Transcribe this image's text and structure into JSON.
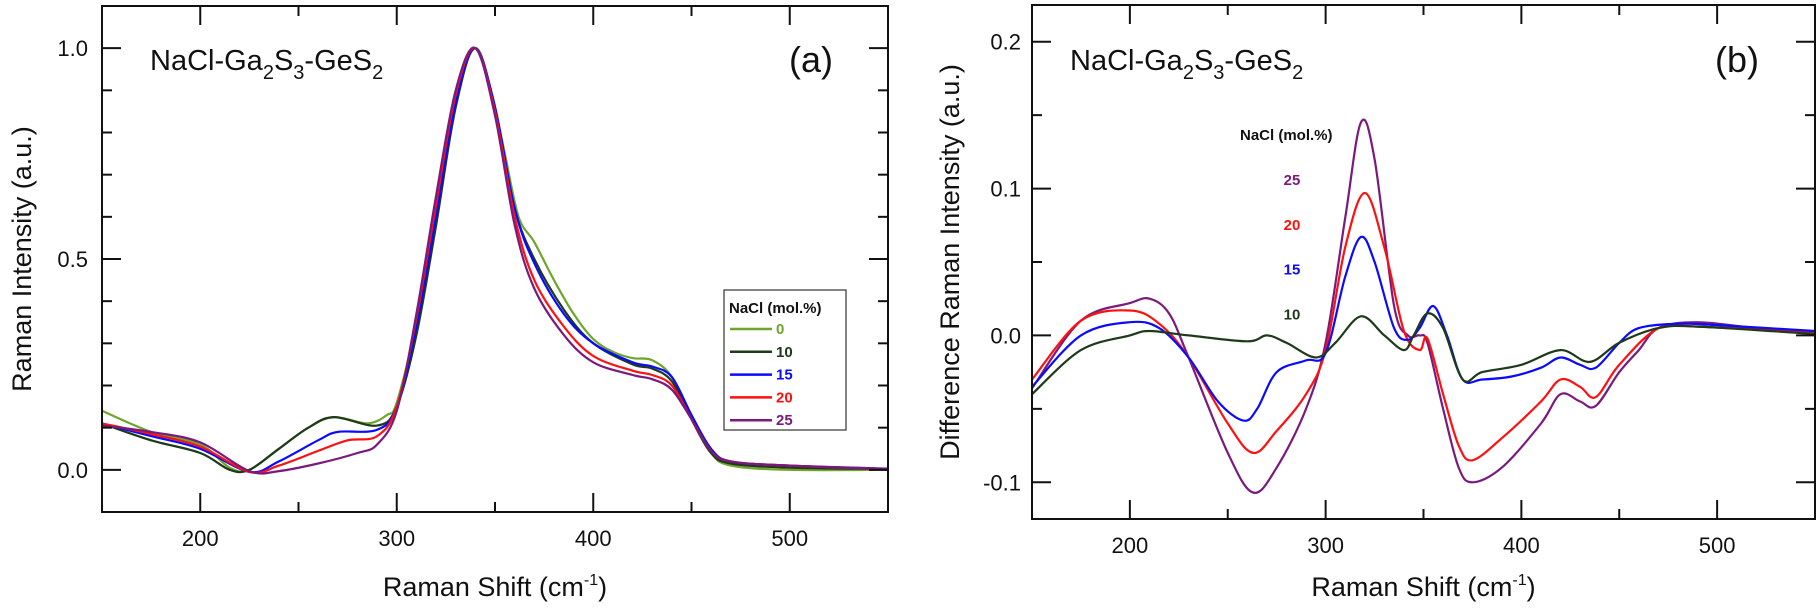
{
  "chart_data": [
    {
      "type": "line",
      "panel_label": "(a)",
      "annotation": {
        "base": "NaCl-Ga",
        "s1": "2",
        "m1": "S",
        "s2": "3",
        "m2": "-GeS",
        "s3": "2"
      },
      "xlabel": "Raman Shift (cm",
      "xlabel_sup": "-1",
      "xlabel_end": ")",
      "ylabel": "Raman Intensity (a.u.)",
      "xlim": [
        150,
        550
      ],
      "ylim": [
        -0.1,
        1.1
      ],
      "xticks": [
        200,
        300,
        400,
        500
      ],
      "xtick_labels": [
        "200",
        "300",
        "400",
        "500"
      ],
      "yticks": [
        0.0,
        0.5,
        1.0
      ],
      "ytick_labels": [
        "0.0",
        "0.5",
        "1.0"
      ],
      "grid": false,
      "legend": {
        "title": "NaCl (mol.%)",
        "placement": "right",
        "boxed": true
      },
      "series": [
        {
          "name": "0",
          "color": "#6ea52c",
          "points": [
            [
              150,
              0.14
            ],
            [
              175,
              0.09
            ],
            [
              200,
              0.06
            ],
            [
              215,
              0.005
            ],
            [
              225,
              0.0
            ],
            [
              240,
              0.05
            ],
            [
              255,
              0.1
            ],
            [
              268,
              0.125
            ],
            [
              285,
              0.11
            ],
            [
              295,
              0.13
            ],
            [
              300,
              0.16
            ],
            [
              310,
              0.35
            ],
            [
              320,
              0.62
            ],
            [
              330,
              0.88
            ],
            [
              340,
              1.0
            ],
            [
              348,
              0.9
            ],
            [
              355,
              0.75
            ],
            [
              362,
              0.6
            ],
            [
              370,
              0.54
            ],
            [
              380,
              0.45
            ],
            [
              390,
              0.37
            ],
            [
              400,
              0.31
            ],
            [
              410,
              0.28
            ],
            [
              420,
              0.265
            ],
            [
              430,
              0.26
            ],
            [
              440,
              0.22
            ],
            [
              450,
              0.12
            ],
            [
              460,
              0.04
            ],
            [
              470,
              0.01
            ],
            [
              500,
              0.0
            ],
            [
              550,
              0.0
            ]
          ]
        },
        {
          "name": "10",
          "color": "#1e3a1a",
          "points": [
            [
              150,
              0.11
            ],
            [
              175,
              0.07
            ],
            [
              200,
              0.04
            ],
            [
              215,
              0.0
            ],
            [
              225,
              0.0
            ],
            [
              240,
              0.05
            ],
            [
              255,
              0.1
            ],
            [
              268,
              0.125
            ],
            [
              290,
              0.105
            ],
            [
              300,
              0.15
            ],
            [
              310,
              0.32
            ],
            [
              320,
              0.58
            ],
            [
              330,
              0.86
            ],
            [
              340,
              1.0
            ],
            [
              350,
              0.85
            ],
            [
              360,
              0.62
            ],
            [
              370,
              0.5
            ],
            [
              385,
              0.38
            ],
            [
              400,
              0.3
            ],
            [
              420,
              0.25
            ],
            [
              430,
              0.24
            ],
            [
              440,
              0.21
            ],
            [
              450,
              0.12
            ],
            [
              460,
              0.04
            ],
            [
              470,
              0.015
            ],
            [
              500,
              0.005
            ],
            [
              550,
              0.002
            ]
          ]
        },
        {
          "name": "15",
          "color": "#0a0aff",
          "points": [
            [
              150,
              0.11
            ],
            [
              175,
              0.08
            ],
            [
              200,
              0.05
            ],
            [
              225,
              -0.005
            ],
            [
              240,
              0.02
            ],
            [
              260,
              0.07
            ],
            [
              270,
              0.09
            ],
            [
              290,
              0.095
            ],
            [
              300,
              0.15
            ],
            [
              310,
              0.34
            ],
            [
              320,
              0.6
            ],
            [
              330,
              0.87
            ],
            [
              340,
              1.0
            ],
            [
              350,
              0.86
            ],
            [
              360,
              0.62
            ],
            [
              370,
              0.49
            ],
            [
              385,
              0.37
            ],
            [
              400,
              0.3
            ],
            [
              420,
              0.255
            ],
            [
              430,
              0.245
            ],
            [
              440,
              0.22
            ],
            [
              450,
              0.13
            ],
            [
              460,
              0.05
            ],
            [
              470,
              0.02
            ],
            [
              500,
              0.01
            ],
            [
              550,
              0.003
            ]
          ]
        },
        {
          "name": "20",
          "color": "#ff1010",
          "points": [
            [
              150,
              0.11
            ],
            [
              175,
              0.085
            ],
            [
              200,
              0.055
            ],
            [
              225,
              -0.005
            ],
            [
              240,
              0.01
            ],
            [
              260,
              0.045
            ],
            [
              275,
              0.07
            ],
            [
              290,
              0.08
            ],
            [
              300,
              0.15
            ],
            [
              310,
              0.36
            ],
            [
              320,
              0.63
            ],
            [
              330,
              0.89
            ],
            [
              340,
              1.0
            ],
            [
              350,
              0.85
            ],
            [
              360,
              0.6
            ],
            [
              370,
              0.45
            ],
            [
              385,
              0.34
            ],
            [
              400,
              0.27
            ],
            [
              420,
              0.235
            ],
            [
              430,
              0.225
            ],
            [
              440,
              0.2
            ],
            [
              450,
              0.12
            ],
            [
              460,
              0.045
            ],
            [
              470,
              0.02
            ],
            [
              500,
              0.01
            ],
            [
              550,
              0.002
            ]
          ]
        },
        {
          "name": "25",
          "color": "#7a1a7e",
          "points": [
            [
              150,
              0.105
            ],
            [
              175,
              0.09
            ],
            [
              200,
              0.065
            ],
            [
              225,
              -0.003
            ],
            [
              240,
              -0.003
            ],
            [
              260,
              0.015
            ],
            [
              280,
              0.04
            ],
            [
              290,
              0.06
            ],
            [
              300,
              0.14
            ],
            [
              310,
              0.37
            ],
            [
              320,
              0.65
            ],
            [
              330,
              0.9
            ],
            [
              340,
              1.0
            ],
            [
              350,
              0.84
            ],
            [
              360,
              0.58
            ],
            [
              370,
              0.43
            ],
            [
              385,
              0.32
            ],
            [
              400,
              0.255
            ],
            [
              420,
              0.225
            ],
            [
              430,
              0.215
            ],
            [
              440,
              0.19
            ],
            [
              450,
              0.12
            ],
            [
              460,
              0.045
            ],
            [
              470,
              0.02
            ],
            [
              500,
              0.01
            ],
            [
              550,
              0.002
            ]
          ]
        }
      ]
    },
    {
      "type": "line",
      "panel_label": "(b)",
      "annotation": {
        "base": "NaCl-Ga",
        "s1": "2",
        "m1": "S",
        "s2": "3",
        "m2": "-GeS",
        "s3": "2"
      },
      "xlabel": "Raman Shift (cm",
      "xlabel_sup": "-1",
      "xlabel_end": ")",
      "ylabel": "Difference Raman Intensity (a.u.)",
      "xlim": [
        150,
        550
      ],
      "ylim": [
        -0.125,
        0.225
      ],
      "xticks": [
        200,
        300,
        400,
        500
      ],
      "xtick_labels": [
        "200",
        "300",
        "400",
        "500"
      ],
      "yticks": [
        -0.1,
        0.0,
        0.1,
        0.2
      ],
      "ytick_labels": [
        "-0.1",
        "0.0",
        "0.1",
        "0.2"
      ],
      "grid": false,
      "legend": {
        "title": "NaCl (mol.%)",
        "placement": "top-center",
        "boxed": false
      },
      "series": [
        {
          "name": "25",
          "color": "#7a1a7e",
          "points": [
            [
              150,
              -0.036
            ],
            [
              175,
              0.01
            ],
            [
              200,
              0.022
            ],
            [
              210,
              0.025
            ],
            [
              220,
              0.015
            ],
            [
              230,
              -0.015
            ],
            [
              250,
              -0.08
            ],
            [
              263,
              -0.107
            ],
            [
              275,
              -0.09
            ],
            [
              290,
              -0.05
            ],
            [
              300,
              -0.005
            ],
            [
              310,
              0.08
            ],
            [
              318,
              0.145
            ],
            [
              325,
              0.12
            ],
            [
              335,
              0.02
            ],
            [
              342,
              0.0
            ],
            [
              348,
              0.0
            ],
            [
              352,
              -0.005
            ],
            [
              360,
              -0.05
            ],
            [
              368,
              -0.09
            ],
            [
              375,
              -0.1
            ],
            [
              390,
              -0.09
            ],
            [
              410,
              -0.06
            ],
            [
              420,
              -0.04
            ],
            [
              430,
              -0.045
            ],
            [
              438,
              -0.048
            ],
            [
              450,
              -0.025
            ],
            [
              460,
              -0.01
            ],
            [
              470,
              0.005
            ],
            [
              490,
              0.009
            ],
            [
              520,
              0.005
            ],
            [
              550,
              0.002
            ]
          ]
        },
        {
          "name": "20",
          "color": "#ff1010",
          "points": [
            [
              150,
              -0.03
            ],
            [
              175,
              0.01
            ],
            [
              200,
              0.017
            ],
            [
              215,
              0.008
            ],
            [
              230,
              -0.015
            ],
            [
              250,
              -0.06
            ],
            [
              263,
              -0.08
            ],
            [
              275,
              -0.065
            ],
            [
              290,
              -0.04
            ],
            [
              300,
              -0.01
            ],
            [
              310,
              0.06
            ],
            [
              320,
              0.097
            ],
            [
              330,
              0.06
            ],
            [
              340,
              0.003
            ],
            [
              348,
              -0.01
            ],
            [
              352,
              -0.002
            ],
            [
              360,
              -0.04
            ],
            [
              368,
              -0.075
            ],
            [
              375,
              -0.085
            ],
            [
              390,
              -0.07
            ],
            [
              410,
              -0.045
            ],
            [
              420,
              -0.03
            ],
            [
              430,
              -0.035
            ],
            [
              438,
              -0.042
            ],
            [
              450,
              -0.02
            ],
            [
              470,
              0.005
            ],
            [
              490,
              0.006
            ],
            [
              550,
              0.002
            ]
          ]
        },
        {
          "name": "15",
          "color": "#0a0aff",
          "points": [
            [
              150,
              -0.035
            ],
            [
              175,
              0.0
            ],
            [
              200,
              0.009
            ],
            [
              215,
              0.005
            ],
            [
              230,
              -0.015
            ],
            [
              245,
              -0.045
            ],
            [
              258,
              -0.058
            ],
            [
              265,
              -0.05
            ],
            [
              275,
              -0.025
            ],
            [
              290,
              -0.017
            ],
            [
              300,
              -0.012
            ],
            [
              310,
              0.04
            ],
            [
              318,
              0.067
            ],
            [
              325,
              0.05
            ],
            [
              335,
              0.005
            ],
            [
              342,
              -0.003
            ],
            [
              348,
              0.005
            ],
            [
              355,
              0.02
            ],
            [
              362,
              0.0
            ],
            [
              370,
              -0.03
            ],
            [
              380,
              -0.03
            ],
            [
              395,
              -0.028
            ],
            [
              410,
              -0.022
            ],
            [
              420,
              -0.015
            ],
            [
              430,
              -0.02
            ],
            [
              438,
              -0.022
            ],
            [
              450,
              -0.005
            ],
            [
              460,
              0.005
            ],
            [
              480,
              0.008
            ],
            [
              500,
              0.007
            ],
            [
              550,
              0.003
            ]
          ]
        },
        {
          "name": "10",
          "color": "#1e3a1a",
          "points": [
            [
              150,
              -0.04
            ],
            [
              175,
              -0.01
            ],
            [
              200,
              0.0
            ],
            [
              210,
              0.003
            ],
            [
              230,
              0.0
            ],
            [
              260,
              -0.004
            ],
            [
              270,
              0.0
            ],
            [
              280,
              -0.005
            ],
            [
              295,
              -0.015
            ],
            [
              305,
              -0.005
            ],
            [
              318,
              0.013
            ],
            [
              330,
              0.0
            ],
            [
              340,
              -0.01
            ],
            [
              345,
              0.0
            ],
            [
              352,
              0.015
            ],
            [
              360,
              0.005
            ],
            [
              370,
              -0.03
            ],
            [
              380,
              -0.025
            ],
            [
              400,
              -0.02
            ],
            [
              420,
              -0.01
            ],
            [
              435,
              -0.018
            ],
            [
              450,
              -0.005
            ],
            [
              470,
              0.005
            ],
            [
              490,
              0.006
            ],
            [
              550,
              0.001
            ]
          ]
        }
      ]
    }
  ]
}
